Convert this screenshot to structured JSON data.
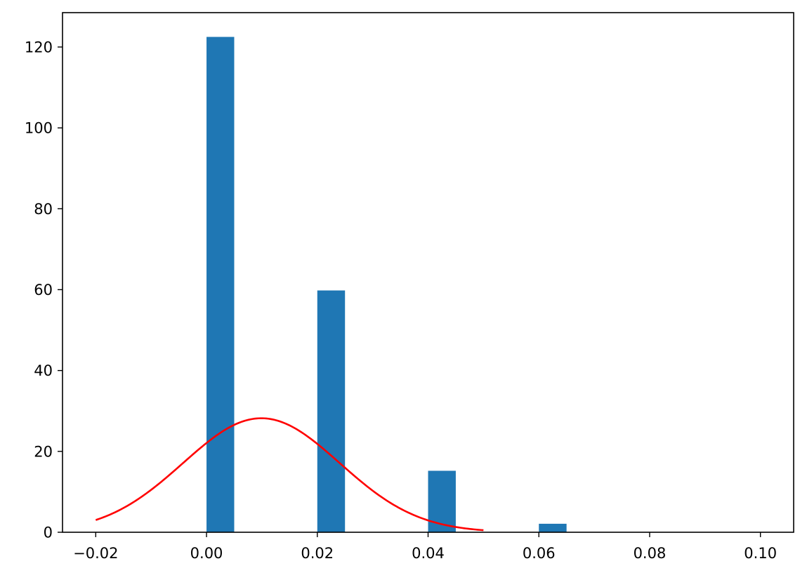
{
  "chart_data": {
    "type": "bar",
    "title": "",
    "xlabel": "",
    "ylabel": "",
    "xlim": [
      -0.026,
      0.106
    ],
    "ylim": [
      0,
      128.5
    ],
    "grid": false,
    "bar_color": "#1f77b4",
    "curve_color": "#ff0000",
    "x_ticks": [
      {
        "value": -0.02,
        "label": "−0.02"
      },
      {
        "value": 0.0,
        "label": "0.00"
      },
      {
        "value": 0.02,
        "label": "0.02"
      },
      {
        "value": 0.04,
        "label": "0.04"
      },
      {
        "value": 0.06,
        "label": "0.06"
      },
      {
        "value": 0.08,
        "label": "0.08"
      },
      {
        "value": 0.1,
        "label": "0.10"
      }
    ],
    "y_ticks": [
      {
        "value": 0,
        "label": "0"
      },
      {
        "value": 20,
        "label": "20"
      },
      {
        "value": 40,
        "label": "40"
      },
      {
        "value": 60,
        "label": "60"
      },
      {
        "value": 80,
        "label": "80"
      },
      {
        "value": 100,
        "label": "100"
      },
      {
        "value": 120,
        "label": "120"
      }
    ],
    "bars": [
      {
        "x0": 0.0,
        "x1": 0.005,
        "value": 122.5
      },
      {
        "x0": 0.02,
        "x1": 0.025,
        "value": 59.8
      },
      {
        "x0": 0.04,
        "x1": 0.045,
        "value": 15.2
      },
      {
        "x0": 0.06,
        "x1": 0.065,
        "value": 2.1
      }
    ],
    "curve": {
      "type": "normal-pdf",
      "mu": 0.0099,
      "sigma": 0.01415,
      "x_range": [
        -0.02,
        0.05
      ]
    }
  }
}
